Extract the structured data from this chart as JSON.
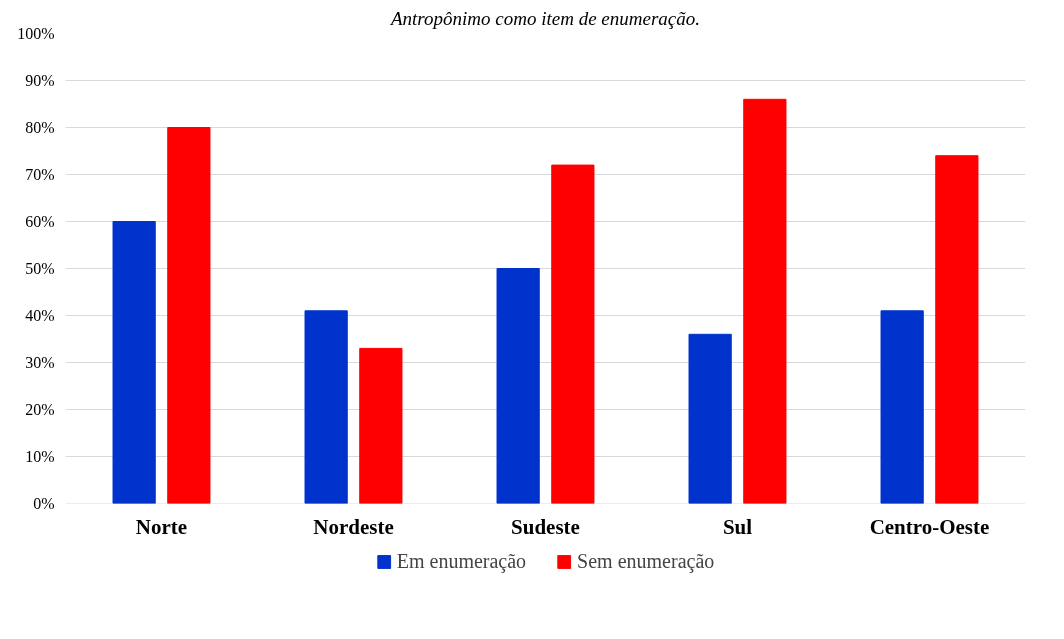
{
  "chart_data": {
    "type": "bar",
    "title": "Antropônimo como item de enumeração.",
    "categories": [
      "Norte",
      "Nordeste",
      "Sudeste",
      "Sul",
      "Centro-Oeste"
    ],
    "series": [
      {
        "name": "Em enumeração",
        "color": "#0033cc",
        "values": [
          60,
          41,
          50,
          36,
          41
        ]
      },
      {
        "name": "Sem enumeração",
        "color": "#ff0000",
        "values": [
          80,
          33,
          72,
          86,
          74
        ]
      }
    ],
    "ylim": [
      0,
      100
    ],
    "yticks": [
      {
        "value": 0,
        "label": "0%"
      },
      {
        "value": 10,
        "label": "10%"
      },
      {
        "value": 20,
        "label": "20%"
      },
      {
        "value": 30,
        "label": "30%"
      },
      {
        "value": 40,
        "label": "40%"
      },
      {
        "value": 50,
        "label": "50%"
      },
      {
        "value": 60,
        "label": "60%"
      },
      {
        "value": 70,
        "label": "70%"
      },
      {
        "value": 80,
        "label": "80%"
      },
      {
        "value": 90,
        "label": "90%"
      },
      {
        "value": 100,
        "label": "100%"
      }
    ],
    "grid": "y",
    "legend": "bottom"
  }
}
